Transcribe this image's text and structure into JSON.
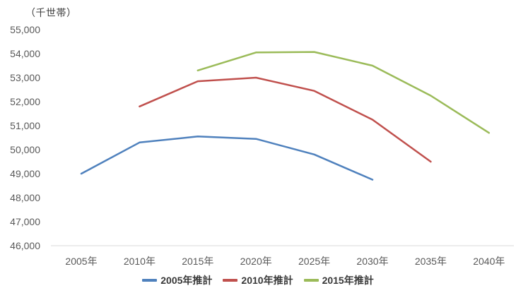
{
  "chart_data": {
    "type": "line",
    "unit_label": "（千世帯）",
    "categories": [
      "2005年",
      "2010年",
      "2015年",
      "2020年",
      "2025年",
      "2030年",
      "2035年",
      "2040年"
    ],
    "series": [
      {
        "name": "2005年推計",
        "color": "#4F81BD",
        "values": [
          49000,
          50300,
          50550,
          50450,
          49800,
          48750,
          null,
          null
        ]
      },
      {
        "name": "2010年推計",
        "color": "#C0504D",
        "values": [
          null,
          51800,
          52850,
          53000,
          52450,
          51250,
          49500,
          null
        ]
      },
      {
        "name": "2015年推計",
        "color": "#9BBB59",
        "values": [
          null,
          null,
          53300,
          54050,
          54070,
          53500,
          52250,
          50700
        ]
      }
    ],
    "y_axis": {
      "min": 46000,
      "max": 55000,
      "tick_step": 1000,
      "tick_labels": [
        "55,000",
        "54,000",
        "53,000",
        "52,000",
        "51,000",
        "50,000",
        "49,000",
        "48,000",
        "47,000",
        "46,000"
      ]
    },
    "legend_position": "bottom",
    "grid": false,
    "line_width": 2.5,
    "axis_color": "#D9D9D9",
    "label_color": "#595959",
    "legend_text_color": "#383838",
    "background_color": "#FFFFFF"
  }
}
